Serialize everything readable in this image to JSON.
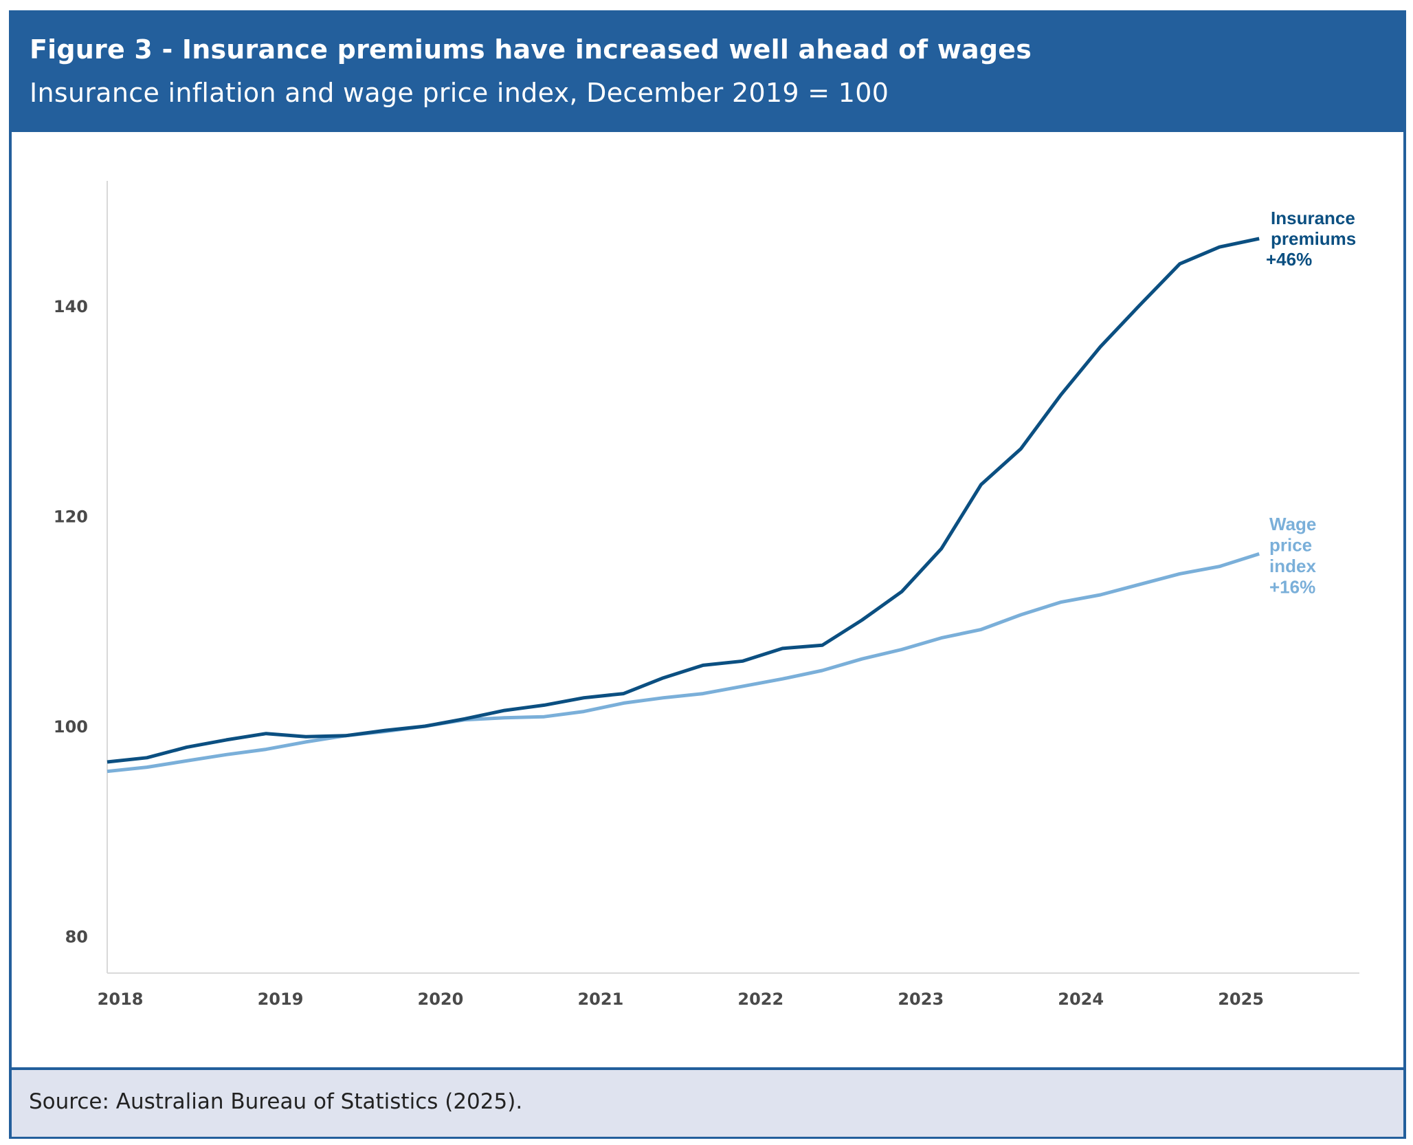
{
  "figure": {
    "title": "Figure 3 - Insurance premiums have increased well ahead of wages",
    "subtitle": "Insurance inflation and wage price index, December 2019 = 100",
    "source": "Source: Australian Bureau of Statistics (2025).",
    "colors": {
      "header_bg": "#235f9c",
      "footer_bg": "#dfe3ef",
      "insurance": "#0b4f81",
      "wage": "#7aafd9",
      "axis": "#d9d9d9",
      "tick_text": "#4a4a4a"
    }
  },
  "chart_data": {
    "type": "line",
    "title": "Figure 3 - Insurance premiums have increased well ahead of wages",
    "subtitle": "Insurance inflation and wage price index, December 2019 = 100",
    "xlabel": "",
    "ylabel": "",
    "x": [
      "Dec-2017",
      "Mar-2018",
      "Jun-2018",
      "Sep-2018",
      "Dec-2018",
      "Mar-2019",
      "Jun-2019",
      "Sep-2019",
      "Dec-2019",
      "Mar-2020",
      "Jun-2020",
      "Sep-2020",
      "Dec-2020",
      "Mar-2021",
      "Jun-2021",
      "Sep-2021",
      "Dec-2021",
      "Mar-2022",
      "Jun-2022",
      "Sep-2022",
      "Dec-2022",
      "Mar-2023",
      "Jun-2023",
      "Sep-2023",
      "Dec-2023",
      "Mar-2024",
      "Jun-2024",
      "Sep-2024",
      "Dec-2024",
      "Mar-2025"
    ],
    "x_tick_labels": [
      "2018",
      "2019",
      "2020",
      "2021",
      "2022",
      "2023",
      "2024",
      "2025"
    ],
    "y_ticks": [
      80,
      100,
      120,
      140
    ],
    "y_tick_labels": [
      "80",
      "100",
      "120",
      "140"
    ],
    "ylim": [
      76.5,
      152
    ],
    "grid": false,
    "legend": "direct-labels-right",
    "series": [
      {
        "name": "Insurance premiums",
        "label_lines": [
          "Insurance",
          "premiums",
          "+46%"
        ],
        "change": "+46%",
        "color": "#0b4f81",
        "values": [
          96.6,
          97.0,
          98.0,
          98.7,
          99.3,
          99.0,
          99.1,
          99.6,
          100.0,
          100.7,
          101.5,
          102.0,
          102.7,
          103.1,
          104.6,
          105.8,
          106.2,
          107.4,
          107.7,
          110.1,
          112.8,
          116.9,
          123.0,
          126.4,
          131.5,
          136.1,
          140.1,
          144.0,
          145.6,
          146.4
        ]
      },
      {
        "name": "Wage price index",
        "label_lines": [
          "Wage",
          "price",
          "index",
          "+16%"
        ],
        "change": "+16%",
        "color": "#7aafd9",
        "values": [
          95.7,
          96.1,
          96.7,
          97.3,
          97.8,
          98.5,
          99.1,
          99.5,
          100.0,
          100.6,
          100.8,
          100.9,
          101.4,
          102.2,
          102.7,
          103.1,
          103.8,
          104.5,
          105.3,
          106.4,
          107.3,
          108.4,
          109.2,
          110.6,
          111.8,
          112.5,
          113.5,
          114.5,
          115.2,
          116.4
        ]
      }
    ]
  }
}
